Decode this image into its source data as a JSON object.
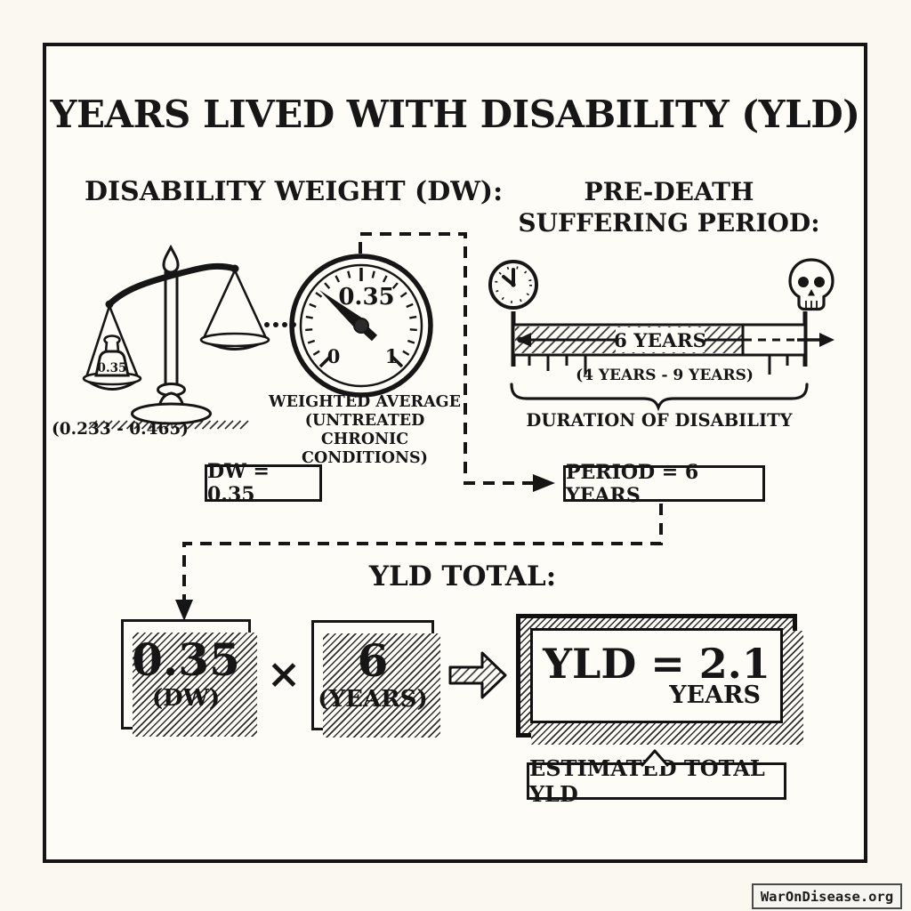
{
  "title": "YEARS LIVED WITH DISABILITY (YLD)",
  "disability_weight": {
    "heading": "DISABILITY WEIGHT (DW):",
    "scale_weight_value": "0.35",
    "weight_range": "(0.233 - 0.465)",
    "gauge_value": "0.35",
    "gauge_min": "0",
    "gauge_max": "1",
    "caption_lines": [
      "WEIGHTED AVERAGE",
      "(UNTREATED CHRONIC",
      "CONDITIONS)"
    ],
    "result": "DW = 0.35"
  },
  "suffering_period": {
    "heading_lines": [
      "PRE-DEATH",
      "SUFFERING PERIOD:"
    ],
    "timeline_label": "6 YEARS",
    "timeline_range": "(4 YEARS - 9 YEARS)",
    "brace_label": "DURATION OF DISABILITY",
    "result": "PERIOD = 6 YEARS"
  },
  "yld_total": {
    "heading": "YLD TOTAL:",
    "factor1": {
      "value": "0.35",
      "label": "(DW)"
    },
    "operator": "×",
    "factor2": {
      "value": "6",
      "label": "(YEARS)"
    },
    "result": {
      "formula": "YLD = 2.1",
      "unit": "YEARS"
    },
    "callout": "ESTIMATED TOTAL YLD"
  },
  "icons": [
    "balance-scale-icon",
    "gauge-icon",
    "clock-icon",
    "skull-icon",
    "block-arrow-icon"
  ],
  "colors": {
    "ink": "#161616",
    "paper": "#fdfcf7"
  },
  "footer": {
    "site": "WarOnDisease.org"
  }
}
